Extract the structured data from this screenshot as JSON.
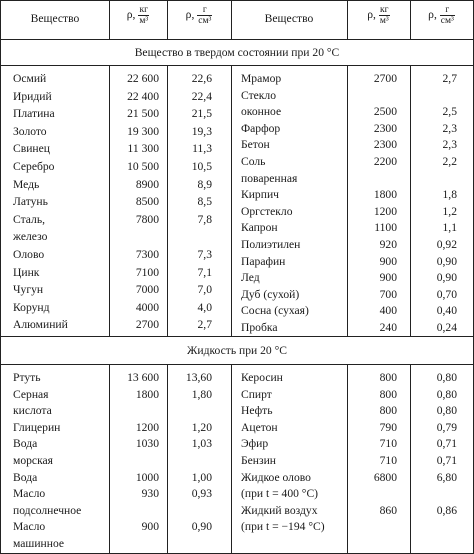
{
  "header": {
    "substance": "Вещество",
    "rho": "ρ,",
    "unit_si_num": "кг",
    "unit_si_den": "м³",
    "unit_cgs_num": "г",
    "unit_cgs_den": "см³"
  },
  "sections": {
    "solid": "Вещество в твердом состоянии при 20 °С",
    "liquid": "Жидкость при 20 °С"
  },
  "solid_left": [
    {
      "name": "Осмий",
      "si": "22 600",
      "cgs": "22,6"
    },
    {
      "name": "Иридий",
      "si": "22 400",
      "cgs": "22,4"
    },
    {
      "name": "Платина",
      "si": "21 500",
      "cgs": "21,5"
    },
    {
      "name": "Золото",
      "si": "19 300",
      "cgs": "19,3"
    },
    {
      "name": "Свинец",
      "si": "11 300",
      "cgs": "11,3"
    },
    {
      "name": "Серебро",
      "si": "10 500",
      "cgs": "10,5"
    },
    {
      "name": "Медь",
      "si": "8900",
      "cgs": "8,9"
    },
    {
      "name": "Латунь",
      "si": "8500",
      "cgs": "8,5"
    },
    {
      "name": "Сталь,",
      "si": "7800",
      "cgs": "7,8"
    },
    {
      "name": "железо",
      "si": "",
      "cgs": ""
    },
    {
      "name": "Олово",
      "si": "7300",
      "cgs": "7,3"
    },
    {
      "name": "Цинк",
      "si": "7100",
      "cgs": "7,1"
    },
    {
      "name": "Чугун",
      "si": "7000",
      "cgs": "7,0"
    },
    {
      "name": "Корунд",
      "si": "4000",
      "cgs": "4,0"
    },
    {
      "name": "Алюминий",
      "si": "2700",
      "cgs": "2,7"
    }
  ],
  "solid_right": [
    {
      "name": "Мрамор",
      "si": "2700",
      "cgs": "2,7"
    },
    {
      "name": "Стекло",
      "si": "",
      "cgs": ""
    },
    {
      "name": "оконное",
      "si": "2500",
      "cgs": "2,5"
    },
    {
      "name": "Фарфор",
      "si": "2300",
      "cgs": "2,3"
    },
    {
      "name": "Бетон",
      "si": "2300",
      "cgs": "2,3"
    },
    {
      "name": "Соль",
      "si": "2200",
      "cgs": "2,2"
    },
    {
      "name": "поваренная",
      "si": "",
      "cgs": ""
    },
    {
      "name": "Кирпич",
      "si": "1800",
      "cgs": "1,8"
    },
    {
      "name": "Оргстекло",
      "si": "1200",
      "cgs": "1,2"
    },
    {
      "name": "Капрон",
      "si": "1100",
      "cgs": "1,1"
    },
    {
      "name": "Полиэтилен",
      "si": "920",
      "cgs": "0,92"
    },
    {
      "name": "Парафин",
      "si": "900",
      "cgs": "0,90"
    },
    {
      "name": "Лед",
      "si": "900",
      "cgs": "0,90"
    },
    {
      "name": "Дуб (сухой)",
      "si": "700",
      "cgs": "0,70"
    },
    {
      "name": "Сосна (сухая)",
      "si": "400",
      "cgs": "0,40"
    },
    {
      "name": "Пробка",
      "si": "240",
      "cgs": "0,24"
    }
  ],
  "liquid_left": [
    {
      "name": "Ртуть",
      "si": "13 600",
      "cgs": "13,60"
    },
    {
      "name": "Серная",
      "si": "1800",
      "cgs": "1,80"
    },
    {
      "name": "кислота",
      "si": "",
      "cgs": ""
    },
    {
      "name": "Глицерин",
      "si": "1200",
      "cgs": "1,20"
    },
    {
      "name": "Вода",
      "si": "1030",
      "cgs": "1,03"
    },
    {
      "name": "морская",
      "si": "",
      "cgs": ""
    },
    {
      "name": "Вода",
      "si": "1000",
      "cgs": "1,00"
    },
    {
      "name": "Масло",
      "si": "930",
      "cgs": "0,93"
    },
    {
      "name": "подсолнечное",
      "si": "",
      "cgs": ""
    },
    {
      "name": "Масло",
      "si": "900",
      "cgs": "0,90"
    },
    {
      "name": "машинное",
      "si": "",
      "cgs": ""
    }
  ],
  "liquid_right": [
    {
      "name": "Керосин",
      "si": "800",
      "cgs": "0,80"
    },
    {
      "name": "Спирт",
      "si": "800",
      "cgs": "0,80"
    },
    {
      "name": "Нефть",
      "si": "800",
      "cgs": "0,80"
    },
    {
      "name": "Ацетон",
      "si": "790",
      "cgs": "0,79"
    },
    {
      "name": "Эфир",
      "si": "710",
      "cgs": "0,71"
    },
    {
      "name": "Бензин",
      "si": "710",
      "cgs": "0,71"
    },
    {
      "name": "Жидкое олово",
      "si": "6800",
      "cgs": "6,80"
    },
    {
      "name": "(при t = 400 °С)",
      "si": "",
      "cgs": ""
    },
    {
      "name": "Жидкий воздух",
      "si": "860",
      "cgs": "0,86"
    },
    {
      "name": "(при t = −194 °С)",
      "si": "",
      "cgs": ""
    }
  ]
}
